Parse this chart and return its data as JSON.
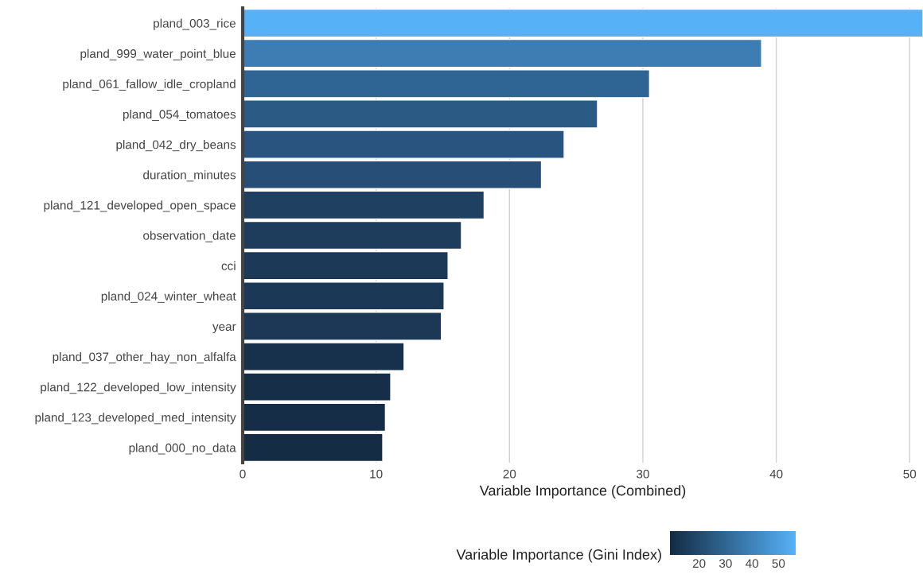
{
  "chart_data": {
    "type": "bar",
    "orientation": "horizontal",
    "xlabel": "Variable Importance (Combined)",
    "clabel": "Variable Importance (Gini Index)",
    "categories": [
      "pland_003_rice",
      "pland_999_water_point_blue",
      "pland_061_fallow_idle_cropland",
      "pland_054_tomatoes",
      "pland_042_dry_beans",
      "duration_minutes",
      "pland_121_developed_open_space",
      "observation_date",
      "cci",
      "pland_024_winter_wheat",
      "year",
      "pland_037_other_hay_non_alfalfa",
      "pland_122_developed_low_intensity",
      "pland_123_developed_med_intensity",
      "pland_000_no_data"
    ],
    "values": [
      51,
      38.9,
      30.5,
      26.6,
      24.1,
      22.4,
      18.1,
      16.4,
      15.4,
      15.1,
      14.9,
      12.1,
      11.1,
      10.7,
      10.5
    ],
    "colors": [
      "#56b1f7",
      "#3d7db4",
      "#2f6594",
      "#2b5a85",
      "#295480",
      "#264e77",
      "#1f4060",
      "#1e3c5b",
      "#1c3958",
      "#1c3857",
      "#1c3856",
      "#17304b",
      "#162e48",
      "#152d46",
      "#152c45"
    ],
    "xlim": [
      0,
      51
    ],
    "xticks": [
      0,
      10,
      20,
      30,
      40,
      50
    ],
    "grid": "x",
    "clim": [
      9,
      56.5
    ],
    "cticks": [
      20,
      30,
      40,
      50
    ]
  }
}
